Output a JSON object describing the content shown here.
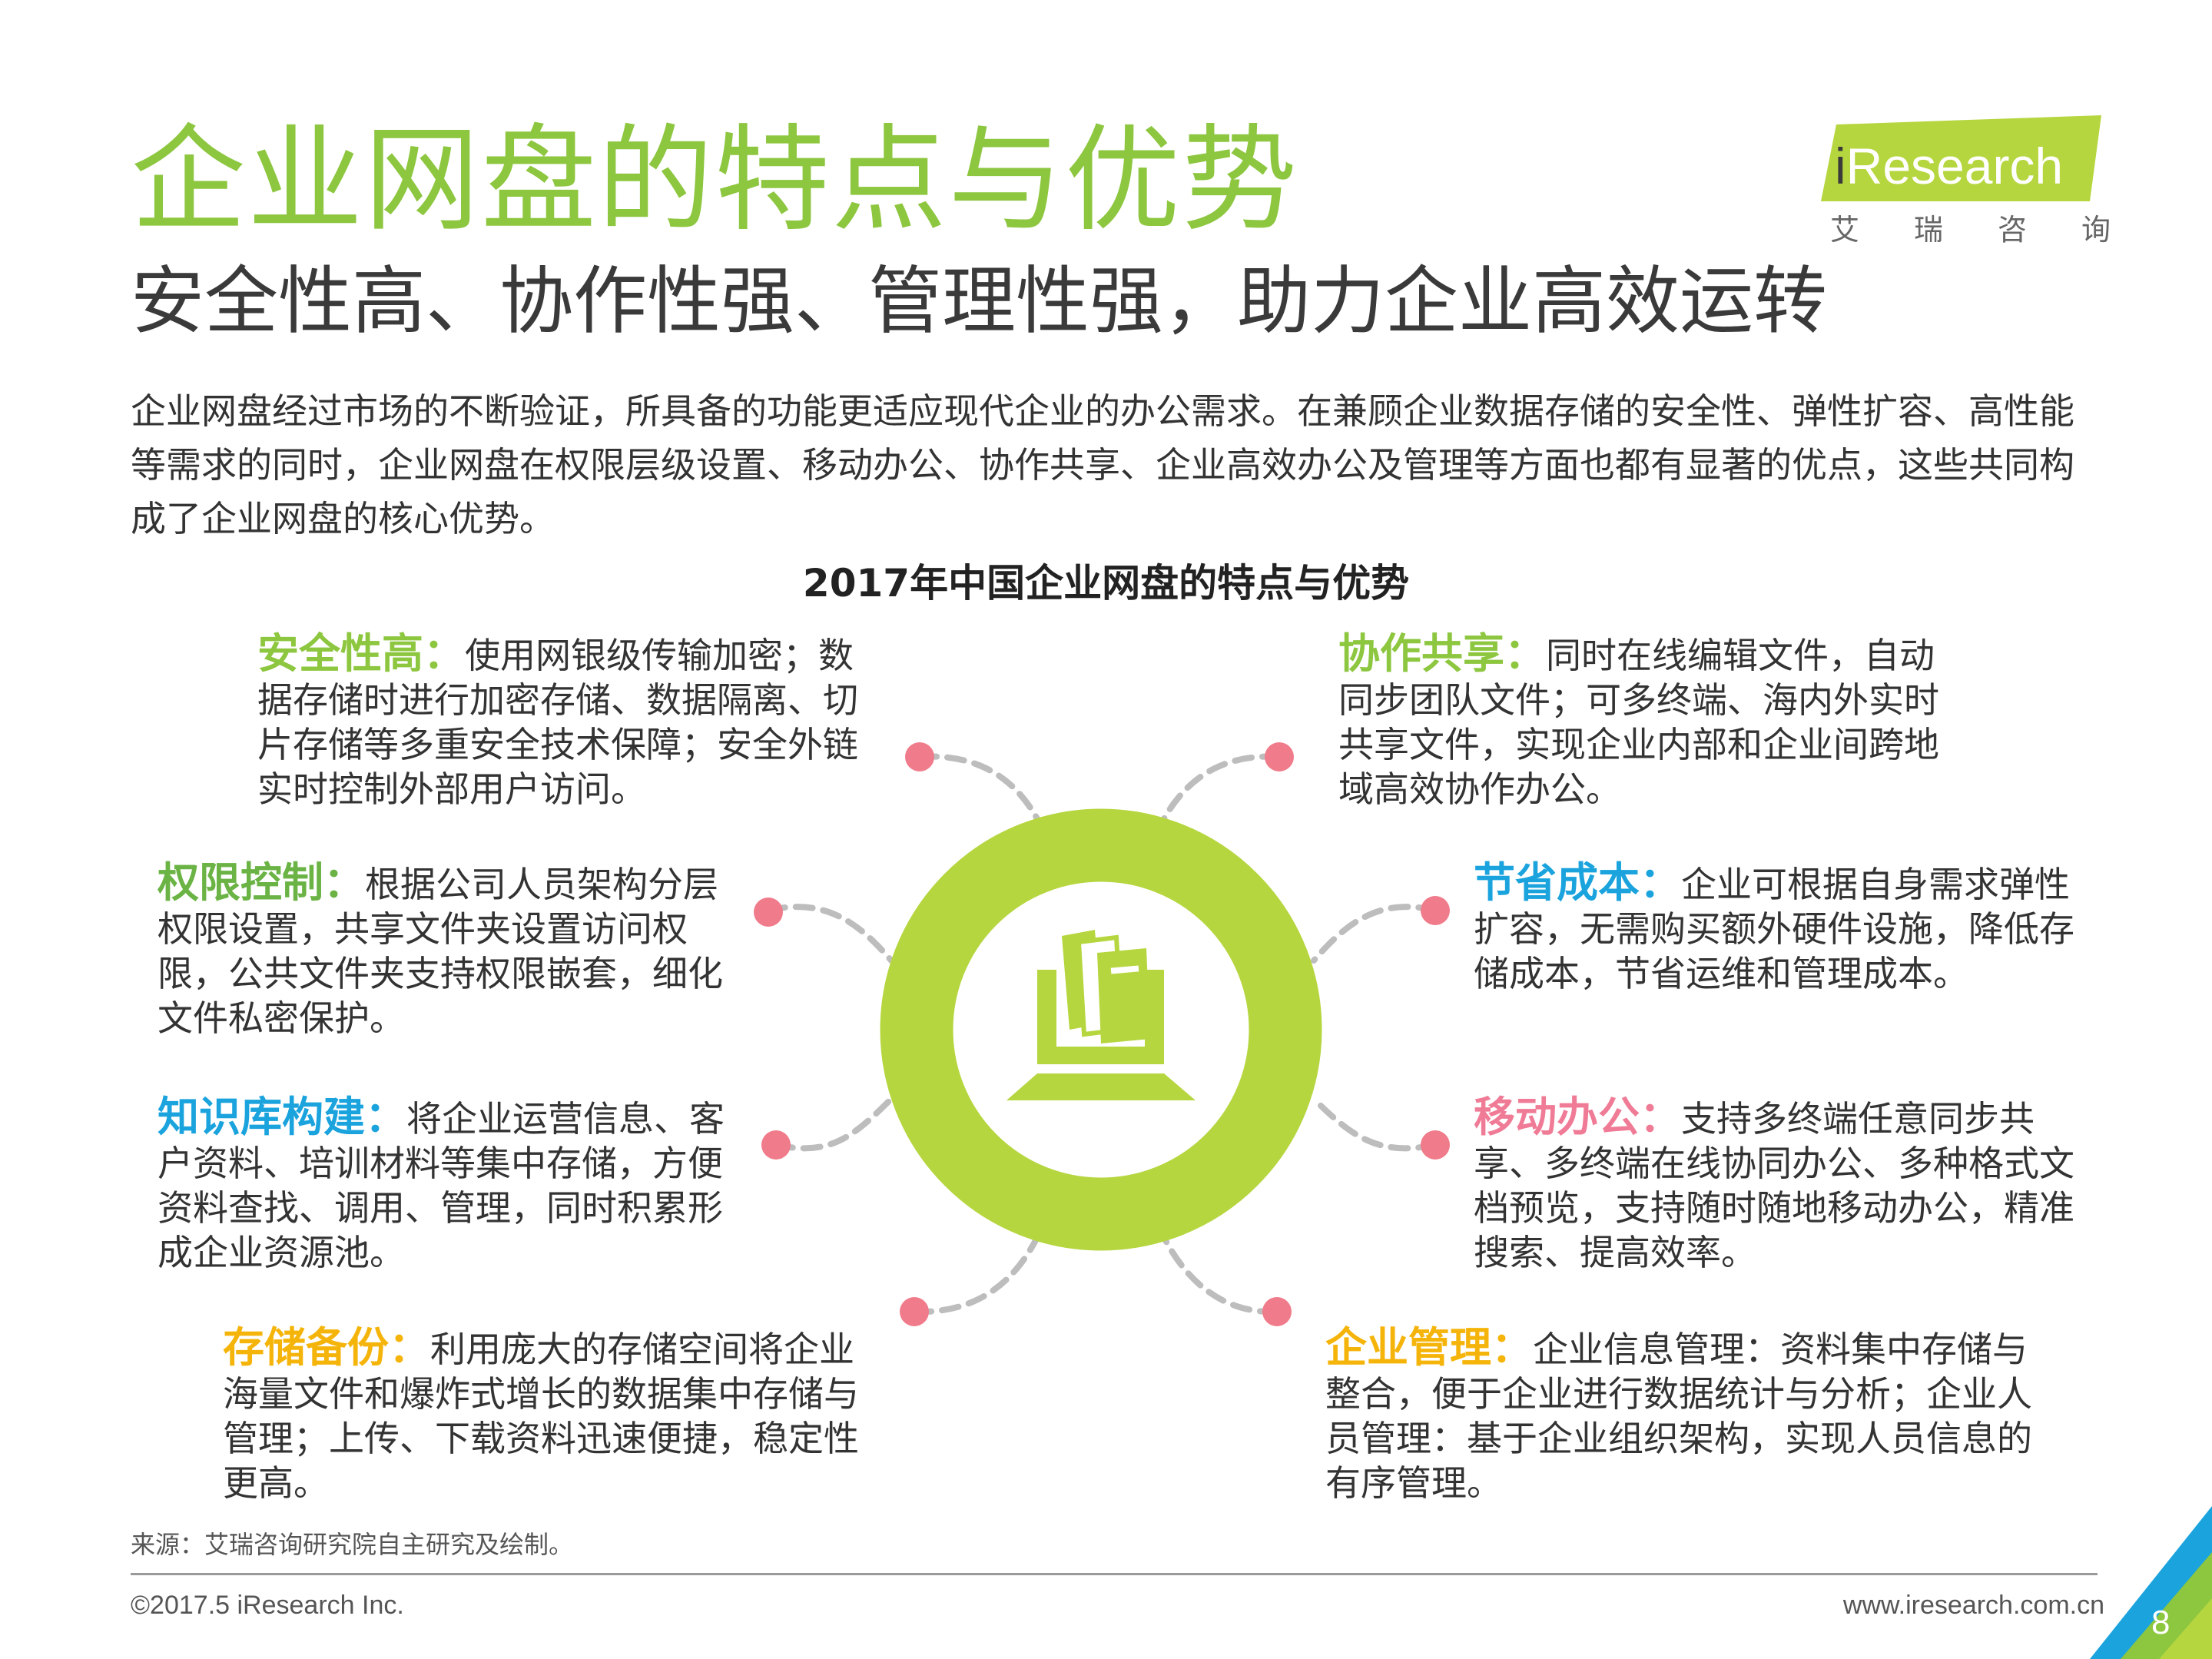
{
  "header": {
    "title": "企业网盘的特点与优势",
    "subtitle": "安全性高、协作性强、管理性强，助力企业高效运转",
    "intro": "企业网盘经过市场的不断验证，所具备的功能更适应现代企业的办公需求。在兼顾企业数据存储的安全性、弹性扩容、高性能等需求的同时，企业网盘在权限层级设置、移动办公、协作共享、企业高效办公及管理等方面也都有显著的优点，这些共同构成了企业网盘的核心优势。"
  },
  "logo": {
    "brand": "iResearch",
    "brand_i": "i",
    "brand_rest": "Research",
    "cn_chars": [
      "艾",
      "瑞",
      "咨",
      "询"
    ]
  },
  "diagram": {
    "title": "2017年中国企业网盘的特点与优势",
    "center_icon": "computer-books-icon",
    "features": {
      "security": {
        "title": "安全性高：",
        "text": "使用网银级传输加密；数据存储时进行加密存储、数据隔离、切片存储等多重安全技术保障；安全外链实时控制外部用户访问。",
        "color": "#8dc63f"
      },
      "permission": {
        "title": "权限控制：",
        "text": "根据公司人员架构分层权限设置，共享文件夹设置访问权限，公共文件夹支持权限嵌套，细化文件私密保护。",
        "color": "#6ab344"
      },
      "knowledge": {
        "title": "知识库构建：",
        "text": "将企业运营信息、客户资料、培训材料等集中存储，方便资料查找、调用、管理，同时积累形成企业资源池。",
        "color": "#1aa3dd"
      },
      "backup": {
        "title": "存储备份：",
        "text": "利用庞大的存储空间将企业海量文件和爆炸式增长的数据集中存储与管理；上传、下载资料迅速便捷，稳定性更高。",
        "color": "#f5b40a"
      },
      "collaboration": {
        "title": "协作共享：",
        "text": "同时在线编辑文件，自动同步团队文件；可多终端、海内外实时共享文件，实现企业内部和企业间跨地域高效协作办公。",
        "color": "#8dc63f"
      },
      "cost": {
        "title": "节省成本：",
        "text": "企业可根据自身需求弹性扩容，无需购买额外硬件设施，降低存储成本，节省运维和管理成本。",
        "color": "#1aa3dd"
      },
      "mobile": {
        "title": "移动办公：",
        "text": "支持多终端任意同步共享、多终端在线协同办公、多种格式文档预览，支持随时随地移动办公，精准搜索、提高效率。",
        "color": "#f07b96"
      },
      "management": {
        "title": "企业管理：",
        "text": "企业信息管理：资料集中存储与整合，便于企业进行数据统计与分析；企业人员管理：基于企业组织架构，实现人员信息的有序管理。",
        "color": "#f5b40a"
      }
    },
    "ring_color": "#b6d63f",
    "dot_color": "#f07b8a"
  },
  "footer": {
    "source": "来源：艾瑞咨询研究院自主研究及绘制。",
    "copyright": "©2017.5 iResearch Inc.",
    "website": "www.iresearch.com.cn",
    "page_number": "8"
  }
}
